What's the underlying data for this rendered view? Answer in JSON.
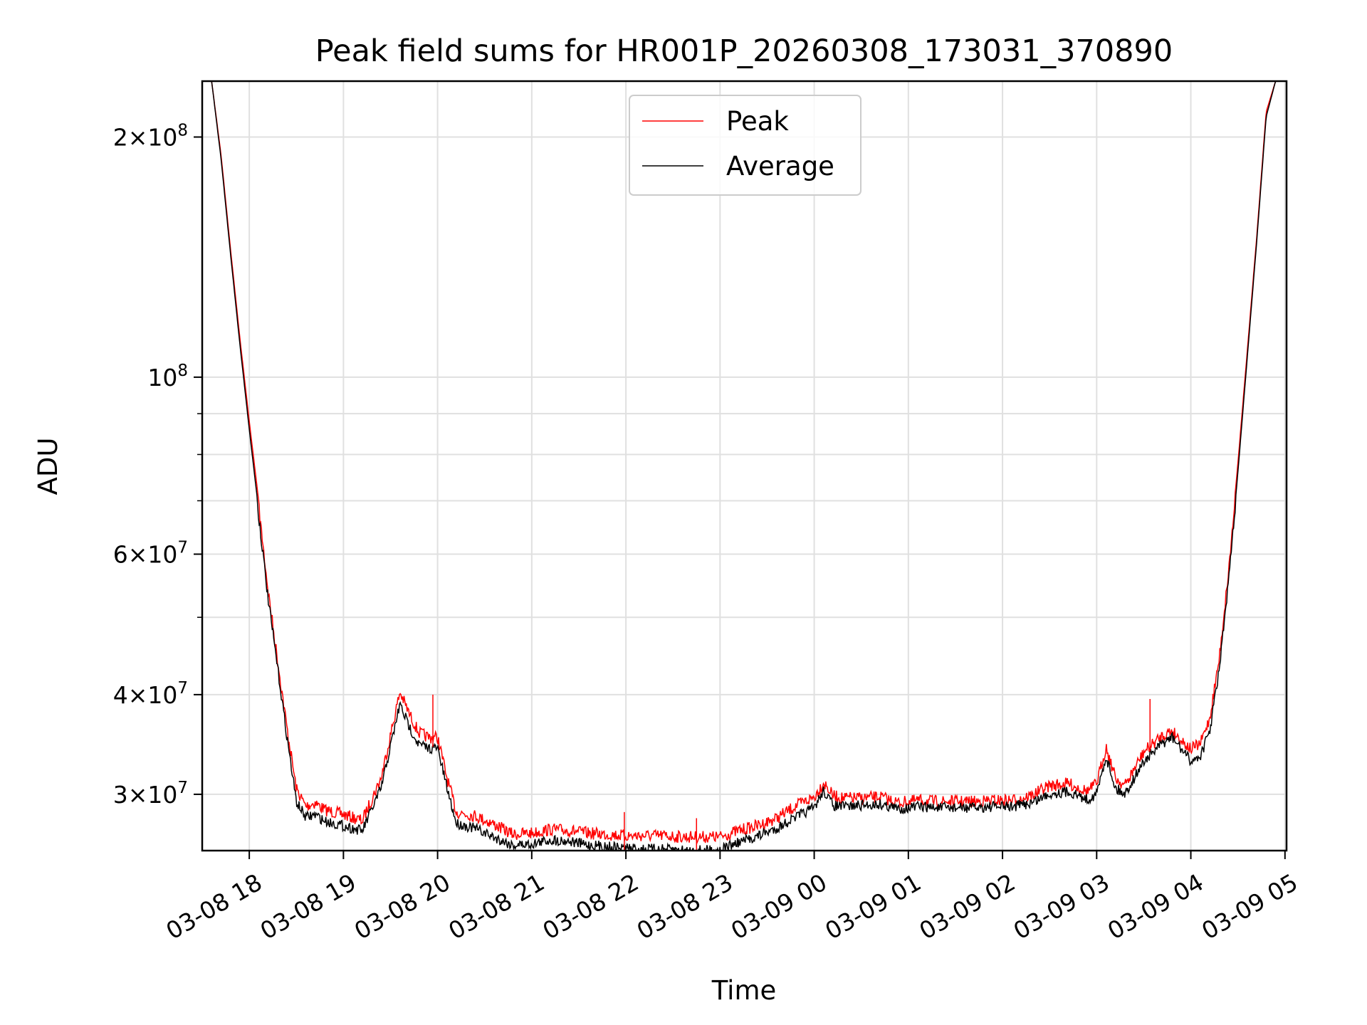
{
  "chart_data": {
    "type": "line",
    "title": "Peak field sums for HR001P_20260308_173031_370890",
    "xlabel": "Time",
    "ylabel": "ADU",
    "x_unit": "hours (datetime)",
    "xlim": [
      "2026-03-08 17:30",
      "2026-03-09 05:01"
    ],
    "ylim": [
      25500000,
      235000000
    ],
    "yscale": "log",
    "grid": true,
    "legend_position": "upper center",
    "x_ticks": [
      {
        "value": "2026-03-08 18:00",
        "label": "03-08 18"
      },
      {
        "value": "2026-03-08 19:00",
        "label": "03-08 19"
      },
      {
        "value": "2026-03-08 20:00",
        "label": "03-08 20"
      },
      {
        "value": "2026-03-08 21:00",
        "label": "03-08 21"
      },
      {
        "value": "2026-03-08 22:00",
        "label": "03-08 22"
      },
      {
        "value": "2026-03-08 23:00",
        "label": "03-08 23"
      },
      {
        "value": "2026-03-09 00:00",
        "label": "03-09 00"
      },
      {
        "value": "2026-03-09 01:00",
        "label": "03-09 01"
      },
      {
        "value": "2026-03-09 02:00",
        "label": "03-09 02"
      },
      {
        "value": "2026-03-09 03:00",
        "label": "03-09 03"
      },
      {
        "value": "2026-03-09 04:00",
        "label": "03-09 04"
      },
      {
        "value": "2026-03-09 05:00",
        "label": "03-09 05"
      }
    ],
    "y_ticks": [
      {
        "value": 30000000,
        "coef": "3",
        "exp": "7"
      },
      {
        "value": 40000000,
        "coef": "4",
        "exp": "7"
      },
      {
        "value": 60000000,
        "coef": "6",
        "exp": "7"
      },
      {
        "value": 100000000,
        "coef": "",
        "exp": "8"
      },
      {
        "value": 200000000,
        "coef": "2",
        "exp": "8"
      }
    ],
    "y_minor_ticks": [
      50000000,
      70000000,
      80000000,
      90000000
    ],
    "series": [
      {
        "name": "Peak",
        "color": "#ff0000",
        "noise": 0.035,
        "x": [
          "2026-03-08 17:36",
          "2026-03-08 17:42",
          "2026-03-08 17:48",
          "2026-03-08 17:54",
          "2026-03-08 18:00",
          "2026-03-08 18:06",
          "2026-03-08 18:12",
          "2026-03-08 18:18",
          "2026-03-08 18:24",
          "2026-03-08 18:30",
          "2026-03-08 18:36",
          "2026-03-08 18:42",
          "2026-03-08 18:48",
          "2026-03-08 18:54",
          "2026-03-08 19:00",
          "2026-03-08 19:12",
          "2026-03-08 19:24",
          "2026-03-08 19:36",
          "2026-03-08 19:42",
          "2026-03-08 19:48",
          "2026-03-08 19:54",
          "2026-03-08 20:00",
          "2026-03-08 20:06",
          "2026-03-08 20:12",
          "2026-03-08 20:24",
          "2026-03-08 20:36",
          "2026-03-08 20:48",
          "2026-03-08 21:00",
          "2026-03-08 21:12",
          "2026-03-08 21:24",
          "2026-03-08 21:36",
          "2026-03-08 21:48",
          "2026-03-08 22:00",
          "2026-03-08 22:12",
          "2026-03-08 22:24",
          "2026-03-08 22:36",
          "2026-03-08 22:48",
          "2026-03-08 23:00",
          "2026-03-08 23:12",
          "2026-03-08 23:24",
          "2026-03-08 23:36",
          "2026-03-08 23:48",
          "2026-03-09 00:00",
          "2026-03-09 00:06",
          "2026-03-09 00:12",
          "2026-03-09 00:18",
          "2026-03-09 00:30",
          "2026-03-09 00:42",
          "2026-03-09 00:54",
          "2026-03-09 01:06",
          "2026-03-09 01:18",
          "2026-03-09 01:30",
          "2026-03-09 01:42",
          "2026-03-09 01:54",
          "2026-03-09 02:06",
          "2026-03-09 02:18",
          "2026-03-09 02:30",
          "2026-03-09 02:42",
          "2026-03-09 02:54",
          "2026-03-09 03:00",
          "2026-03-09 03:06",
          "2026-03-09 03:12",
          "2026-03-09 03:18",
          "2026-03-09 03:30",
          "2026-03-09 03:42",
          "2026-03-09 03:48",
          "2026-03-09 03:54",
          "2026-03-09 04:00",
          "2026-03-09 04:06",
          "2026-03-09 04:12",
          "2026-03-09 04:18",
          "2026-03-09 04:24",
          "2026-03-09 04:30",
          "2026-03-09 04:36",
          "2026-03-09 04:42",
          "2026-03-09 04:48",
          "2026-03-09 04:54",
          "2026-03-09 05:00"
        ],
        "y": [
          235000000,
          190000000,
          145000000,
          112000000,
          88000000,
          70000000,
          55000000,
          45000000,
          37000000,
          31000000,
          29500000,
          29800000,
          29200000,
          29000000,
          28800000,
          28300000,
          32000000,
          41000000,
          38500000,
          36500000,
          36000000,
          36000000,
          32000000,
          29000000,
          28700000,
          28000000,
          27200000,
          27300000,
          27600000,
          27500000,
          27300000,
          27200000,
          27100000,
          27100000,
          27100000,
          27000000,
          27000000,
          27000000,
          27500000,
          27900000,
          28500000,
          29500000,
          30300000,
          31600000,
          30400000,
          30200000,
          30200000,
          30300000,
          29800000,
          30000000,
          29900000,
          29900000,
          29900000,
          30000000,
          30000000,
          30400000,
          31300000,
          31500000,
          30800000,
          31500000,
          35000000,
          32000000,
          31300000,
          34500000,
          36200000,
          36700000,
          35700000,
          34800000,
          35300000,
          38000000,
          45000000,
          58000000,
          78000000,
          108000000,
          150000000,
          215000000,
          235000000,
          235000000
        ]
      },
      {
        "name": "Average",
        "color": "#000000",
        "noise": 0.03,
        "x": [
          "2026-03-08 17:36",
          "2026-03-08 17:42",
          "2026-03-08 17:48",
          "2026-03-08 17:54",
          "2026-03-08 18:00",
          "2026-03-08 18:06",
          "2026-03-08 18:12",
          "2026-03-08 18:18",
          "2026-03-08 18:24",
          "2026-03-08 18:30",
          "2026-03-08 18:36",
          "2026-03-08 18:42",
          "2026-03-08 18:48",
          "2026-03-08 18:54",
          "2026-03-08 19:00",
          "2026-03-08 19:12",
          "2026-03-08 19:24",
          "2026-03-08 19:36",
          "2026-03-08 19:42",
          "2026-03-08 19:48",
          "2026-03-08 19:54",
          "2026-03-08 20:00",
          "2026-03-08 20:06",
          "2026-03-08 20:12",
          "2026-03-08 20:24",
          "2026-03-08 20:36",
          "2026-03-08 20:48",
          "2026-03-08 21:00",
          "2026-03-08 21:12",
          "2026-03-08 21:24",
          "2026-03-08 21:36",
          "2026-03-08 21:48",
          "2026-03-08 22:00",
          "2026-03-08 22:12",
          "2026-03-08 22:24",
          "2026-03-08 22:36",
          "2026-03-08 22:48",
          "2026-03-08 23:00",
          "2026-03-08 23:12",
          "2026-03-08 23:24",
          "2026-03-08 23:36",
          "2026-03-08 23:48",
          "2026-03-09 00:00",
          "2026-03-09 00:06",
          "2026-03-09 00:12",
          "2026-03-09 00:18",
          "2026-03-09 00:30",
          "2026-03-09 00:42",
          "2026-03-09 00:54",
          "2026-03-09 01:06",
          "2026-03-09 01:18",
          "2026-03-09 01:30",
          "2026-03-09 01:42",
          "2026-03-09 01:54",
          "2026-03-09 02:06",
          "2026-03-09 02:18",
          "2026-03-09 02:30",
          "2026-03-09 02:42",
          "2026-03-09 02:54",
          "2026-03-09 03:00",
          "2026-03-09 03:06",
          "2026-03-09 03:12",
          "2026-03-09 03:18",
          "2026-03-09 03:30",
          "2026-03-09 03:42",
          "2026-03-09 03:48",
          "2026-03-09 03:54",
          "2026-03-09 04:00",
          "2026-03-09 04:06",
          "2026-03-09 04:12",
          "2026-03-09 04:18",
          "2026-03-09 04:24",
          "2026-03-09 04:30",
          "2026-03-09 04:36",
          "2026-03-09 04:42",
          "2026-03-09 04:48",
          "2026-03-09 04:54",
          "2026-03-09 05:00"
        ],
        "y": [
          235000000,
          188000000,
          143000000,
          110000000,
          86000000,
          68000000,
          53500000,
          44000000,
          36000000,
          29800000,
          28500000,
          28700000,
          28200000,
          28000000,
          27800000,
          27400000,
          31000000,
          39500000,
          37000000,
          35200000,
          34800000,
          34800000,
          31000000,
          28000000,
          27600000,
          26900000,
          26300000,
          26400000,
          26700000,
          26600000,
          26300000,
          26200000,
          26100000,
          26000000,
          26000000,
          25900000,
          25900000,
          26000000,
          26500000,
          27000000,
          27600000,
          28500000,
          29300000,
          30800000,
          29500000,
          29400000,
          29500000,
          29600000,
          29200000,
          29400000,
          29300000,
          29300000,
          29300000,
          29400000,
          29400000,
          29700000,
          30500000,
          30700000,
          30000000,
          30500000,
          34000000,
          31000000,
          30500000,
          33500000,
          35300000,
          35900000,
          34700000,
          33500000,
          34000000,
          36500000,
          43500000,
          56000000,
          76000000,
          106000000,
          148000000,
          212000000,
          235000000,
          235000000
        ]
      }
    ],
    "spikes": [
      {
        "series": "Peak",
        "x": "2026-03-08 19:57",
        "y": 40000000
      },
      {
        "series": "Peak",
        "x": "2026-03-08 21:59",
        "y": 28500000
      },
      {
        "series": "Peak",
        "x": "2026-03-08 22:45",
        "y": 28000000
      },
      {
        "series": "Peak",
        "x": "2026-03-09 03:34",
        "y": 39500000
      }
    ]
  }
}
